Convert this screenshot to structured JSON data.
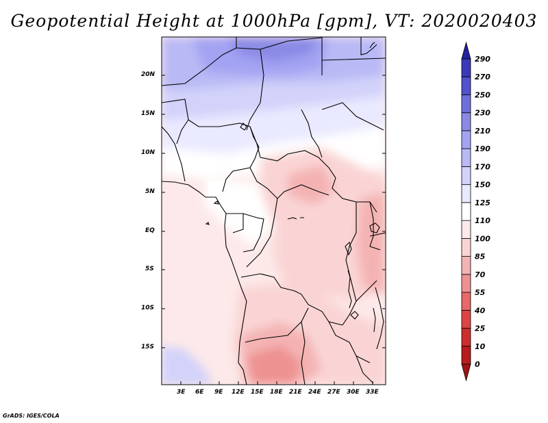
{
  "title": "Geopotential Height at 1000hPa [gpm], VT: 2020020403",
  "footer": "GrADS: IGES/COLA",
  "map": {
    "lat_labels": [
      "20N",
      "15N",
      "10N",
      "5N",
      "EQ",
      "5S",
      "10S",
      "15S"
    ],
    "lon_labels": [
      "3E",
      "6E",
      "9E",
      "12E",
      "15E",
      "18E",
      "21E",
      "24E",
      "27E",
      "30E",
      "33E"
    ]
  },
  "colorbar": {
    "levels": [
      "0",
      "10",
      "25",
      "40",
      "55",
      "70",
      "85",
      "100",
      "110",
      "125",
      "150",
      "170",
      "190",
      "210",
      "230",
      "250",
      "270",
      "290"
    ],
    "colors": [
      "#a11414",
      "#b81c1c",
      "#cc2e2e",
      "#dd4545",
      "#e66868",
      "#ee9191",
      "#f4b3b3",
      "#fad4d4",
      "#fde9e9",
      "#ffffff",
      "#e9e9ff",
      "#d2d2fa",
      "#b9b9f6",
      "#a3a3f3",
      "#8a8ae6",
      "#6f6fdc",
      "#5252cc",
      "#3a3ab8",
      "#23239e"
    ]
  }
}
